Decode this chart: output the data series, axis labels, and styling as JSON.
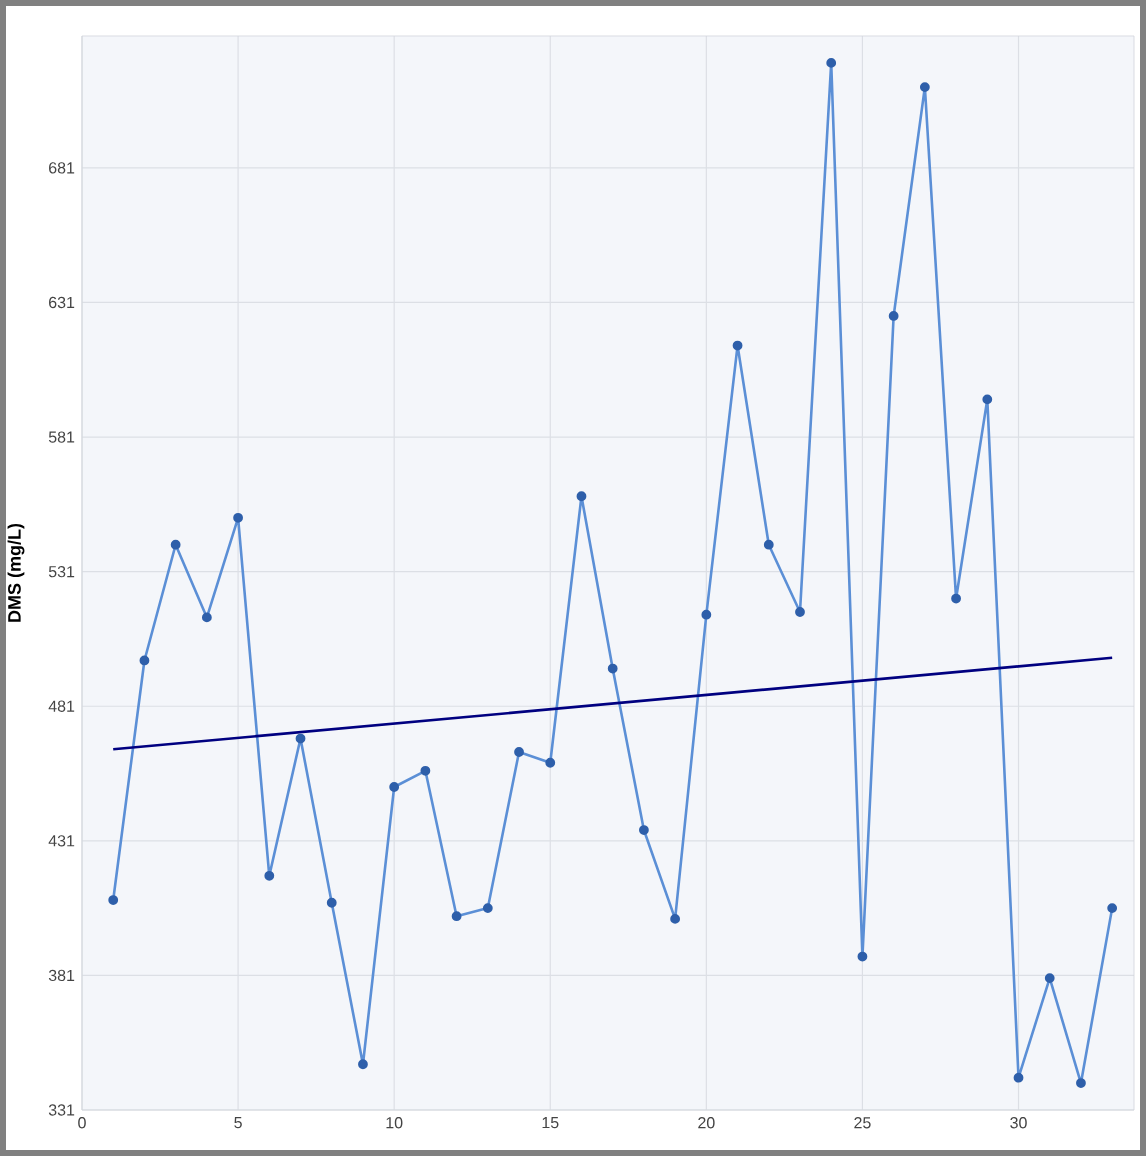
{
  "chart_data": {
    "type": "line",
    "ylabel": "DMS (mg/L)",
    "xlim": [
      0,
      33.7
    ],
    "ylim": [
      331,
      730
    ],
    "xticks": [
      0,
      5,
      10,
      15,
      20,
      25,
      30
    ],
    "yticks": [
      331,
      381,
      431,
      481,
      531,
      581,
      631,
      681
    ],
    "grid": true,
    "marker": "circle",
    "line_style": "solid",
    "series": [
      {
        "color": "#5b8fd6",
        "x": [
          1,
          2,
          3,
          4,
          5,
          6,
          7,
          8,
          9,
          10,
          11,
          12,
          13,
          14,
          15,
          16,
          17,
          18,
          19,
          20,
          21,
          22,
          23,
          24,
          25,
          26,
          27,
          28,
          29,
          30,
          31,
          32,
          33
        ],
        "values": [
          409,
          498,
          541,
          514,
          551,
          418,
          469,
          408,
          348,
          451,
          457,
          403,
          406,
          464,
          460,
          559,
          495,
          435,
          402,
          515,
          615,
          541,
          516,
          720,
          388,
          626,
          711,
          521,
          595,
          343,
          380,
          341,
          406
        ]
      },
      {
        "color": "#000080",
        "marker": "none",
        "x": [
          1,
          33
        ],
        "values": [
          465,
          499
        ]
      }
    ]
  }
}
